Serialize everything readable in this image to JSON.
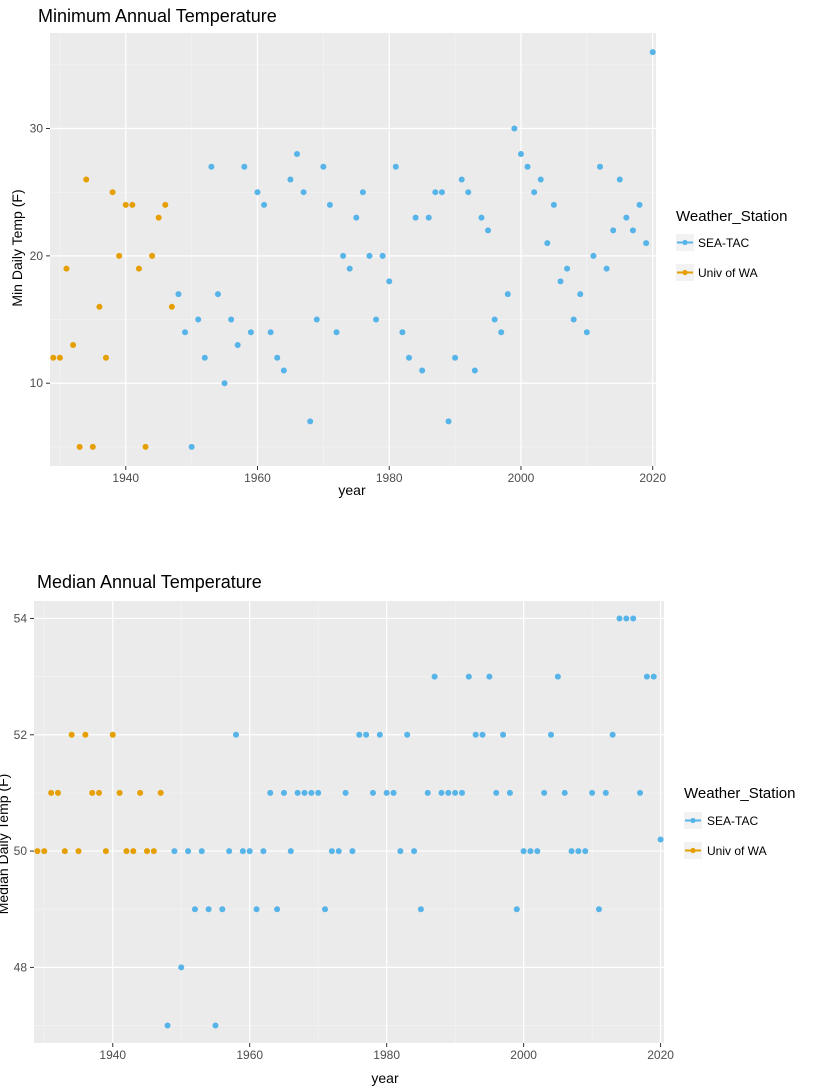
{
  "colors": {
    "sea_tac": "#56B4E9",
    "univ_wa": "#E69F00",
    "panel": "#EBEBEB"
  },
  "chart_data": [
    {
      "type": "scatter",
      "title": "Minimum Annual Temperature",
      "xlabel": "year",
      "ylabel": "Min Daily Temp (F)",
      "xlim": [
        1928.5,
        2020.5
      ],
      "ylim": [
        3.5,
        37.5
      ],
      "x_ticks": [
        1940,
        1960,
        1980,
        2000,
        2020
      ],
      "y_ticks": [
        10,
        20,
        30
      ],
      "legend": {
        "title": "Weather_Station",
        "position": "right",
        "entries": [
          "SEA-TAC",
          "Univ of WA"
        ]
      },
      "series": [
        {
          "name": "Univ of WA",
          "color": "#E69F00",
          "points": [
            [
              1929,
              12
            ],
            [
              1930,
              12
            ],
            [
              1931,
              19
            ],
            [
              1932,
              13
            ],
            [
              1933,
              5
            ],
            [
              1934,
              26
            ],
            [
              1935,
              5
            ],
            [
              1936,
              16
            ],
            [
              1937,
              12
            ],
            [
              1938,
              25
            ],
            [
              1939,
              20
            ],
            [
              1940,
              24
            ],
            [
              1941,
              24
            ],
            [
              1942,
              19
            ],
            [
              1943,
              5
            ],
            [
              1944,
              20
            ],
            [
              1945,
              23
            ],
            [
              1946,
              24
            ],
            [
              1947,
              16
            ]
          ]
        },
        {
          "name": "SEA-TAC",
          "color": "#56B4E9",
          "points": [
            [
              1948,
              17
            ],
            [
              1949,
              14
            ],
            [
              1950,
              5
            ],
            [
              1951,
              15
            ],
            [
              1952,
              12
            ],
            [
              1953,
              27
            ],
            [
              1954,
              17
            ],
            [
              1955,
              10
            ],
            [
              1956,
              15
            ],
            [
              1957,
              13
            ],
            [
              1958,
              27
            ],
            [
              1959,
              14
            ],
            [
              1960,
              25
            ],
            [
              1961,
              24
            ],
            [
              1962,
              14
            ],
            [
              1963,
              12
            ],
            [
              1964,
              11
            ],
            [
              1965,
              26
            ],
            [
              1966,
              28
            ],
            [
              1967,
              25
            ],
            [
              1968,
              7
            ],
            [
              1969,
              15
            ],
            [
              1970,
              27
            ],
            [
              1971,
              24
            ],
            [
              1972,
              14
            ],
            [
              1973,
              20
            ],
            [
              1974,
              19
            ],
            [
              1975,
              23
            ],
            [
              1976,
              25
            ],
            [
              1977,
              20
            ],
            [
              1978,
              15
            ],
            [
              1979,
              20
            ],
            [
              1980,
              18
            ],
            [
              1981,
              27
            ],
            [
              1982,
              14
            ],
            [
              1983,
              12
            ],
            [
              1984,
              23
            ],
            [
              1985,
              11
            ],
            [
              1986,
              23
            ],
            [
              1987,
              25
            ],
            [
              1988,
              25
            ],
            [
              1989,
              7
            ],
            [
              1990,
              12
            ],
            [
              1991,
              26
            ],
            [
              1992,
              25
            ],
            [
              1993,
              11
            ],
            [
              1994,
              23
            ],
            [
              1995,
              22
            ],
            [
              1996,
              15
            ],
            [
              1997,
              14
            ],
            [
              1998,
              17
            ],
            [
              1999,
              30
            ],
            [
              2000,
              28
            ],
            [
              2001,
              27
            ],
            [
              2002,
              25
            ],
            [
              2003,
              26
            ],
            [
              2004,
              21
            ],
            [
              2005,
              24
            ],
            [
              2006,
              18
            ],
            [
              2007,
              19
            ],
            [
              2008,
              15
            ],
            [
              2009,
              17
            ],
            [
              2010,
              14
            ],
            [
              2011,
              20
            ],
            [
              2012,
              27
            ],
            [
              2013,
              19
            ],
            [
              2014,
              22
            ],
            [
              2015,
              26
            ],
            [
              2016,
              23
            ],
            [
              2017,
              22
            ],
            [
              2018,
              24
            ],
            [
              2019,
              21
            ],
            [
              2020,
              36
            ]
          ]
        }
      ]
    },
    {
      "type": "scatter",
      "title": "Median Annual Temperature",
      "xlabel": "year",
      "ylabel": "Median Daily Temp (F)",
      "xlim": [
        1928.5,
        2020.5
      ],
      "ylim": [
        46.7,
        54.3
      ],
      "x_ticks": [
        1940,
        1960,
        1980,
        2000,
        2020
      ],
      "y_ticks": [
        48,
        50,
        52,
        54
      ],
      "legend": {
        "title": "Weather_Station",
        "position": "right",
        "entries": [
          "SEA-TAC",
          "Univ of WA"
        ]
      },
      "series": [
        {
          "name": "Univ of WA",
          "color": "#E69F00",
          "points": [
            [
              1929,
              50
            ],
            [
              1930,
              50
            ],
            [
              1931,
              51
            ],
            [
              1932,
              51
            ],
            [
              1933,
              50
            ],
            [
              1934,
              52
            ],
            [
              1935,
              50
            ],
            [
              1936,
              52
            ],
            [
              1937,
              51
            ],
            [
              1938,
              51
            ],
            [
              1939,
              50
            ],
            [
              1940,
              52
            ],
            [
              1941,
              51
            ],
            [
              1942,
              50
            ],
            [
              1943,
              50
            ],
            [
              1944,
              51
            ],
            [
              1945,
              50
            ],
            [
              1946,
              50
            ],
            [
              1947,
              51
            ]
          ]
        },
        {
          "name": "SEA-TAC",
          "color": "#56B4E9",
          "points": [
            [
              1948,
              47
            ],
            [
              1949,
              50
            ],
            [
              1950,
              48
            ],
            [
              1951,
              50
            ],
            [
              1952,
              49
            ],
            [
              1953,
              50
            ],
            [
              1954,
              49
            ],
            [
              1955,
              47
            ],
            [
              1956,
              49
            ],
            [
              1957,
              50
            ],
            [
              1958,
              52
            ],
            [
              1959,
              50
            ],
            [
              1960,
              50
            ],
            [
              1961,
              49
            ],
            [
              1962,
              50
            ],
            [
              1963,
              51
            ],
            [
              1964,
              49
            ],
            [
              1965,
              51
            ],
            [
              1966,
              50
            ],
            [
              1967,
              51
            ],
            [
              1968,
              51
            ],
            [
              1969,
              51
            ],
            [
              1970,
              51
            ],
            [
              1971,
              49
            ],
            [
              1972,
              50
            ],
            [
              1973,
              50
            ],
            [
              1974,
              51
            ],
            [
              1975,
              50
            ],
            [
              1976,
              52
            ],
            [
              1977,
              52
            ],
            [
              1978,
              51
            ],
            [
              1979,
              52
            ],
            [
              1980,
              51
            ],
            [
              1981,
              51
            ],
            [
              1982,
              50
            ],
            [
              1983,
              52
            ],
            [
              1984,
              50
            ],
            [
              1985,
              49
            ],
            [
              1986,
              51
            ],
            [
              1987,
              53
            ],
            [
              1988,
              51
            ],
            [
              1989,
              51
            ],
            [
              1990,
              51
            ],
            [
              1991,
              51
            ],
            [
              1992,
              53
            ],
            [
              1993,
              52
            ],
            [
              1994,
              52
            ],
            [
              1995,
              53
            ],
            [
              1996,
              51
            ],
            [
              1997,
              52
            ],
            [
              1998,
              51
            ],
            [
              1999,
              49
            ],
            [
              2000,
              50
            ],
            [
              2001,
              50
            ],
            [
              2002,
              50
            ],
            [
              2003,
              51
            ],
            [
              2004,
              52
            ],
            [
              2005,
              53
            ],
            [
              2006,
              51
            ],
            [
              2007,
              50
            ],
            [
              2008,
              50
            ],
            [
              2009,
              50
            ],
            [
              2010,
              51
            ],
            [
              2011,
              49
            ],
            [
              2012,
              51
            ],
            [
              2013,
              52
            ],
            [
              2014,
              54
            ],
            [
              2015,
              54
            ],
            [
              2016,
              54
            ],
            [
              2017,
              51
            ],
            [
              2018,
              53
            ],
            [
              2019,
              53
            ],
            [
              2020,
              50.2
            ]
          ]
        }
      ]
    }
  ]
}
